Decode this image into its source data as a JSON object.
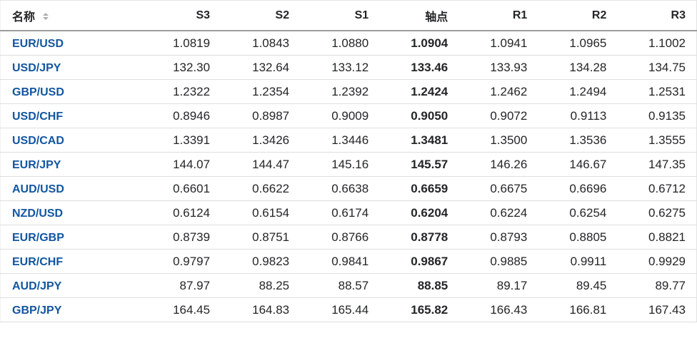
{
  "table": {
    "name_header": "名称",
    "pivot_index": 3,
    "columns": [
      {
        "key": "s3",
        "label": "S3"
      },
      {
        "key": "s2",
        "label": "S2"
      },
      {
        "key": "s1",
        "label": "S1"
      },
      {
        "key": "pivot",
        "label": "轴点"
      },
      {
        "key": "r1",
        "label": "R1"
      },
      {
        "key": "r2",
        "label": "R2"
      },
      {
        "key": "r3",
        "label": "R3"
      }
    ],
    "rows": [
      {
        "pair": "EUR/USD",
        "values": [
          "1.0819",
          "1.0843",
          "1.0880",
          "1.0904",
          "1.0941",
          "1.0965",
          "1.1002"
        ]
      },
      {
        "pair": "USD/JPY",
        "values": [
          "132.30",
          "132.64",
          "133.12",
          "133.46",
          "133.93",
          "134.28",
          "134.75"
        ]
      },
      {
        "pair": "GBP/USD",
        "values": [
          "1.2322",
          "1.2354",
          "1.2392",
          "1.2424",
          "1.2462",
          "1.2494",
          "1.2531"
        ]
      },
      {
        "pair": "USD/CHF",
        "values": [
          "0.8946",
          "0.8987",
          "0.9009",
          "0.9050",
          "0.9072",
          "0.9113",
          "0.9135"
        ]
      },
      {
        "pair": "USD/CAD",
        "values": [
          "1.3391",
          "1.3426",
          "1.3446",
          "1.3481",
          "1.3500",
          "1.3536",
          "1.3555"
        ]
      },
      {
        "pair": "EUR/JPY",
        "values": [
          "144.07",
          "144.47",
          "145.16",
          "145.57",
          "146.26",
          "146.67",
          "147.35"
        ]
      },
      {
        "pair": "AUD/USD",
        "values": [
          "0.6601",
          "0.6622",
          "0.6638",
          "0.6659",
          "0.6675",
          "0.6696",
          "0.6712"
        ]
      },
      {
        "pair": "NZD/USD",
        "values": [
          "0.6124",
          "0.6154",
          "0.6174",
          "0.6204",
          "0.6224",
          "0.6254",
          "0.6275"
        ]
      },
      {
        "pair": "EUR/GBP",
        "values": [
          "0.8739",
          "0.8751",
          "0.8766",
          "0.8778",
          "0.8793",
          "0.8805",
          "0.8821"
        ]
      },
      {
        "pair": "EUR/CHF",
        "values": [
          "0.9797",
          "0.9823",
          "0.9841",
          "0.9867",
          "0.9885",
          "0.9911",
          "0.9929"
        ]
      },
      {
        "pair": "AUD/JPY",
        "values": [
          "87.97",
          "88.25",
          "88.57",
          "88.85",
          "89.17",
          "89.45",
          "89.77"
        ]
      },
      {
        "pair": "GBP/JPY",
        "values": [
          "164.45",
          "164.83",
          "165.44",
          "165.82",
          "166.43",
          "166.81",
          "167.43"
        ]
      }
    ],
    "colors": {
      "pair_link_blue": "#1256a0",
      "header_text": "#232526",
      "value_text": "#232526",
      "row_border": "#dedede",
      "header_border": "#9c9c9c",
      "sort_icon_gray": "#aeaeae"
    }
  }
}
